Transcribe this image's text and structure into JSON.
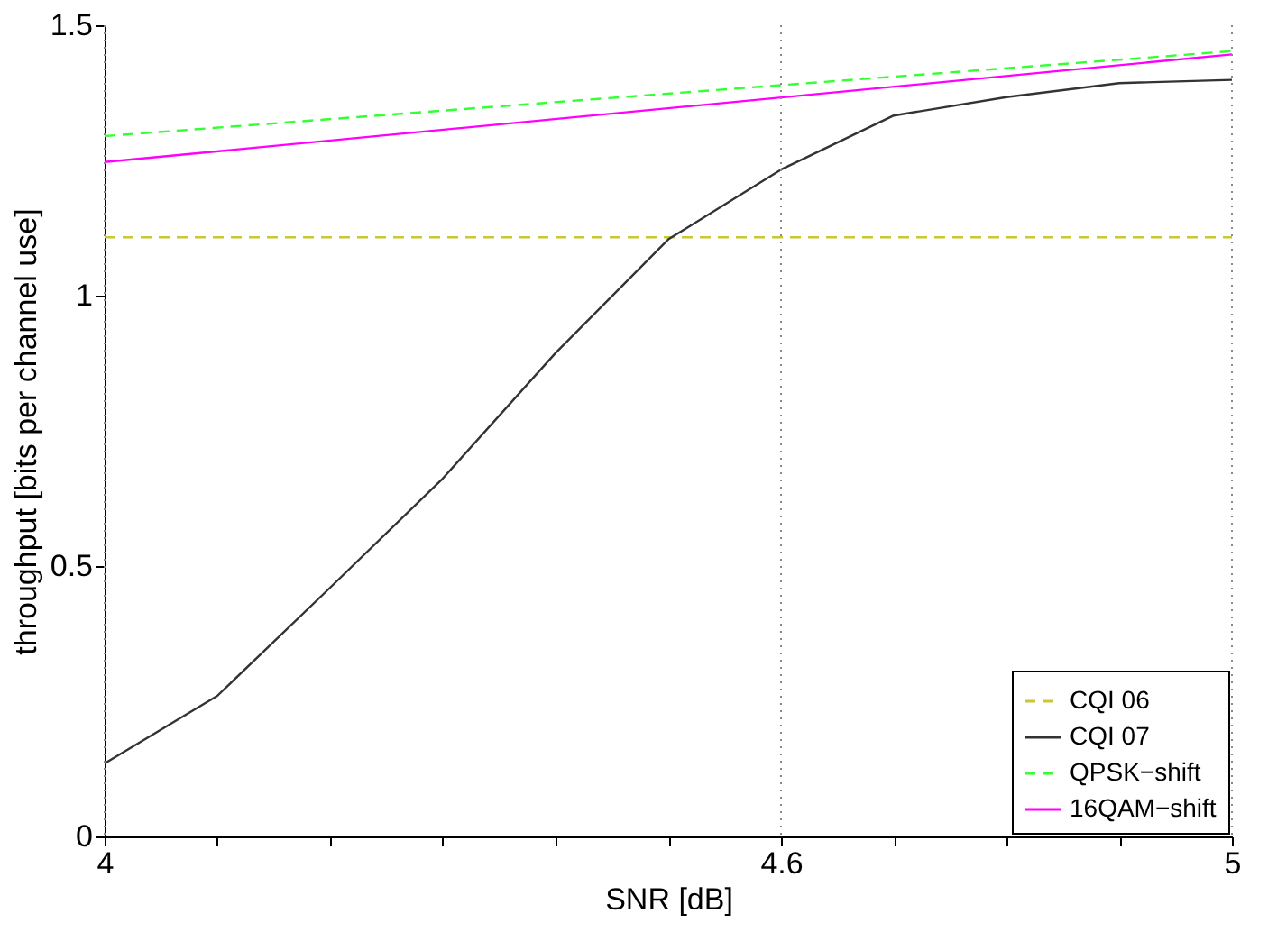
{
  "chart_data": {
    "type": "line",
    "xlabel": "SNR [dB]",
    "ylabel": "throughput [bits per channel use]",
    "xlim": [
      4,
      5
    ],
    "ylim": [
      0,
      1.5
    ],
    "xticks": [
      4,
      {
        "value": 4.1,
        "label": null
      },
      {
        "value": 4.2,
        "label": null
      },
      {
        "value": 4.3,
        "label": null
      },
      {
        "value": 4.4,
        "label": null
      },
      {
        "value": 4.5,
        "label": null
      },
      4.6,
      {
        "value": 4.7,
        "label": null
      },
      {
        "value": 4.8,
        "label": null
      },
      {
        "value": 4.9,
        "label": null
      },
      5
    ],
    "yticks": [
      0,
      0.5,
      1,
      1.5
    ],
    "grid": "x",
    "legend": "bottom right",
    "marker": "none",
    "series": [
      {
        "name": "CQI 06",
        "color": "#c8c832",
        "line_style": "dashed",
        "x": [
          4,
          5
        ],
        "values": [
          1.108,
          1.108
        ]
      },
      {
        "name": "CQI 07",
        "color": "#333333",
        "line_style": "solid",
        "x": [
          4,
          4.1,
          4.2,
          4.3,
          4.4,
          4.5,
          4.6,
          4.7,
          4.8,
          4.9,
          5
        ],
        "values": [
          0.135,
          0.26,
          0.46,
          0.662,
          0.894,
          1.104,
          1.233,
          1.333,
          1.367,
          1.393,
          1.399
        ]
      },
      {
        "name": "QPSK−shift",
        "color": "#33ff33",
        "line_style": "dashed",
        "x": [
          4,
          5
        ],
        "values": [
          1.295,
          1.452
        ]
      },
      {
        "name": "16QAM−shift",
        "color": "#ff00ff",
        "line_style": "solid",
        "x": [
          4,
          5
        ],
        "values": [
          1.247,
          1.446
        ]
      }
    ]
  }
}
